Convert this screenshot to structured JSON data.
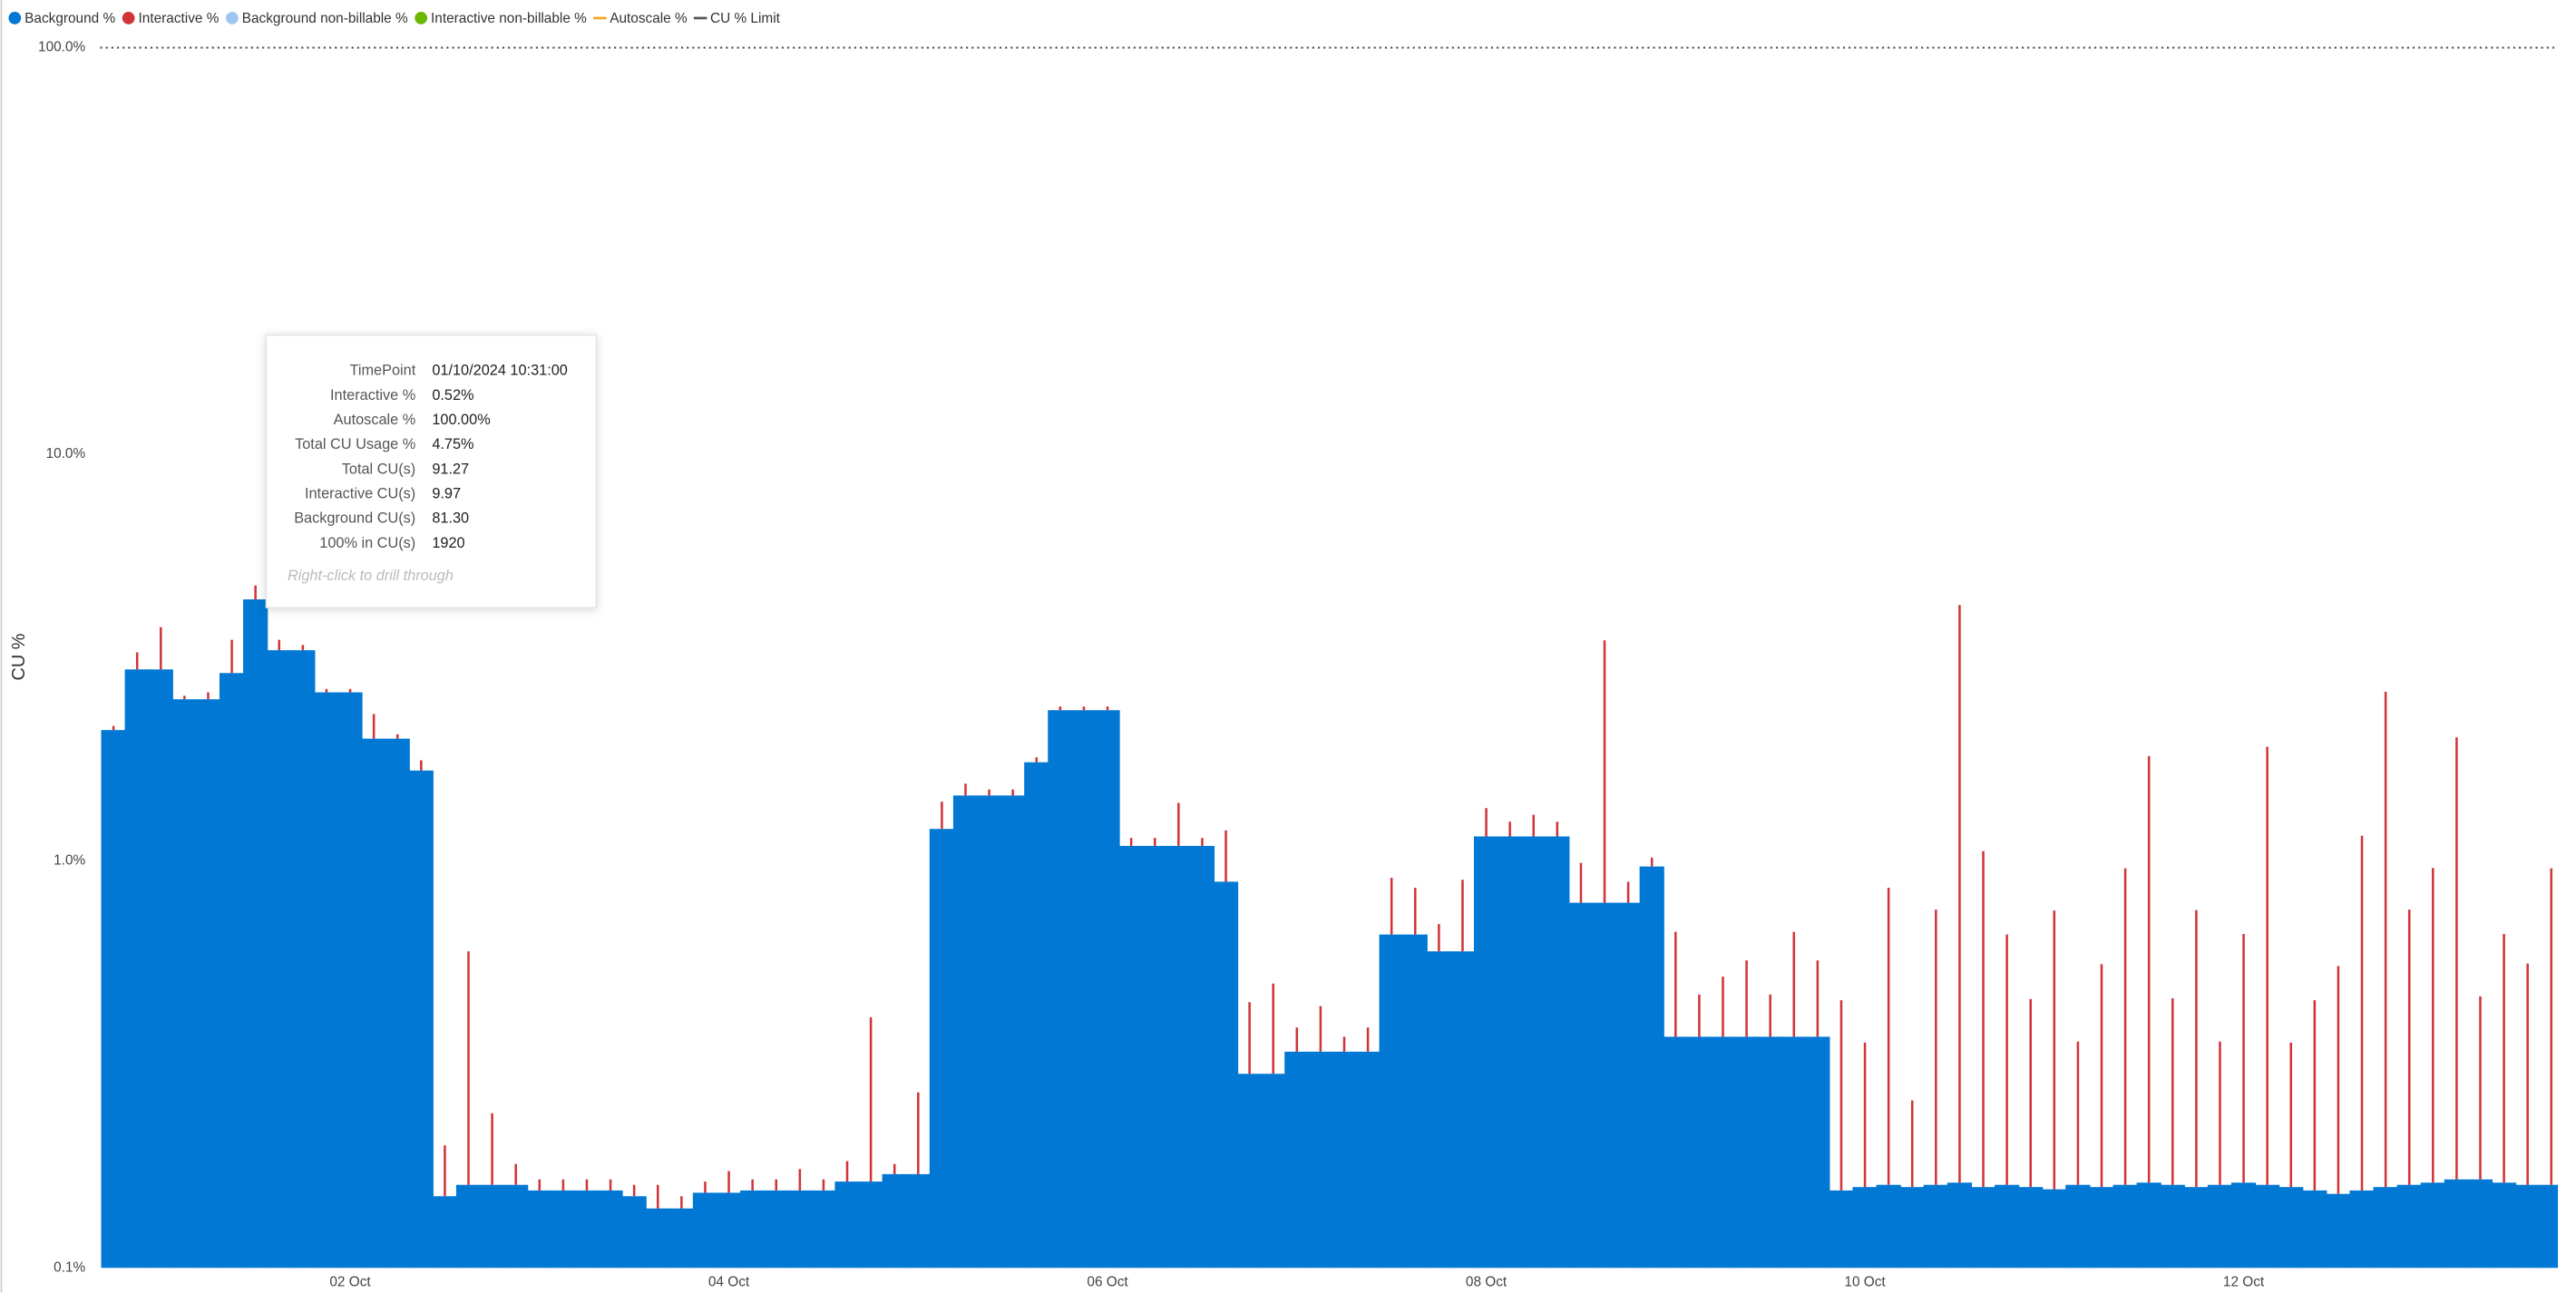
{
  "chart_data": {
    "type": "bar",
    "stacked": true,
    "y_label": "CU %",
    "log_scale": true,
    "xlim": [
      0.68,
      13.66
    ],
    "xticks": [
      {
        "value": 2,
        "label": "02 Oct"
      },
      {
        "value": 4,
        "label": "04 Oct"
      },
      {
        "value": 6,
        "label": "06 Oct"
      },
      {
        "value": 8,
        "label": "08 Oct"
      },
      {
        "value": 10,
        "label": "10 Oct"
      },
      {
        "value": 12,
        "label": "12 Oct"
      }
    ],
    "ylim": [
      0.1,
      100
    ],
    "yticks": [
      {
        "value": 0.1,
        "label": "0.1%"
      },
      {
        "value": 1,
        "label": "1.0%"
      },
      {
        "value": 10,
        "label": "10.0%"
      },
      {
        "value": 100,
        "label": "100.0%"
      }
    ],
    "limit": 100,
    "x": [
      0.75,
      0.875,
      1,
      1.125,
      1.25,
      1.375,
      1.5,
      1.625,
      1.75,
      1.875,
      2,
      2.125,
      2.25,
      2.375,
      2.5,
      2.625,
      2.75,
      2.875,
      3,
      3.125,
      3.25,
      3.375,
      3.5,
      3.625,
      3.75,
      3.875,
      4,
      4.125,
      4.25,
      4.375,
      4.5,
      4.625,
      4.75,
      4.875,
      5,
      5.125,
      5.25,
      5.375,
      5.5,
      5.625,
      5.75,
      5.875,
      6,
      6.125,
      6.25,
      6.375,
      6.5,
      6.625,
      6.75,
      6.875,
      7,
      7.125,
      7.25,
      7.375,
      7.5,
      7.625,
      7.75,
      7.875,
      8,
      8.125,
      8.25,
      8.375,
      8.5,
      8.625,
      8.75,
      8.875,
      9,
      9.125,
      9.25,
      9.375,
      9.5,
      9.625,
      9.75,
      9.875,
      10,
      10.125,
      10.25,
      10.375,
      10.5,
      10.625,
      10.75,
      10.875,
      11,
      11.125,
      11.25,
      11.375,
      11.5,
      11.625,
      11.75,
      11.875,
      12,
      12.125,
      12.25,
      12.375,
      12.5,
      12.625,
      12.75,
      12.875,
      13,
      13.125,
      13.25,
      13.375,
      13.5,
      13.625
    ],
    "series": [
      {
        "name": "Background %",
        "color": "#0078d4",
        "marker": "dot",
        "values": [
          2.1,
          2.96,
          2.96,
          2.5,
          2.5,
          2.9,
          4.4,
          3.3,
          3.3,
          2.6,
          2.6,
          2.0,
          2.0,
          1.67,
          0.15,
          0.16,
          0.16,
          0.16,
          0.155,
          0.155,
          0.155,
          0.155,
          0.15,
          0.14,
          0.14,
          0.153,
          0.153,
          0.155,
          0.155,
          0.155,
          0.155,
          0.163,
          0.163,
          0.17,
          0.17,
          1.2,
          1.45,
          1.45,
          1.45,
          1.75,
          2.35,
          2.35,
          2.35,
          1.09,
          1.09,
          1.09,
          1.09,
          0.89,
          0.3,
          0.3,
          0.34,
          0.34,
          0.34,
          0.34,
          0.66,
          0.66,
          0.6,
          0.6,
          1.15,
          1.15,
          1.15,
          1.15,
          0.79,
          0.79,
          0.79,
          0.97,
          0.37,
          0.37,
          0.37,
          0.37,
          0.37,
          0.37,
          0.37,
          0.155,
          0.158,
          0.16,
          0.158,
          0.16,
          0.162,
          0.158,
          0.16,
          0.158,
          0.156,
          0.16,
          0.158,
          0.16,
          0.162,
          0.16,
          0.158,
          0.16,
          0.162,
          0.16,
          0.158,
          0.155,
          0.152,
          0.155,
          0.158,
          0.16,
          0.162,
          0.165,
          0.165,
          0.162,
          0.16,
          0.16
        ]
      },
      {
        "name": "Interactive %",
        "color": "#d13438",
        "marker": "dot",
        "values": [
          0.05,
          0.3,
          0.8,
          0.05,
          0.1,
          0.6,
          0.36,
          0.2,
          0.1,
          0.05,
          0.05,
          0.3,
          0.05,
          0.1,
          0.05,
          0.44,
          0.08,
          0.02,
          0.01,
          0.01,
          0.01,
          0.01,
          0.01,
          0.02,
          0.01,
          0.01,
          0.02,
          0.01,
          0.01,
          0.02,
          0.01,
          0.02,
          0.25,
          0.01,
          0.1,
          0.2,
          0.1,
          0.05,
          0.05,
          0.05,
          0.05,
          0.05,
          0.05,
          0.05,
          0.05,
          0.3,
          0.05,
          0.3,
          0.15,
          0.2,
          0.05,
          0.1,
          0.03,
          0.05,
          0.25,
          0.2,
          0.1,
          0.3,
          0.2,
          0.1,
          0.15,
          0.1,
          0.2,
          2.7,
          0.1,
          0.05,
          0.3,
          0.1,
          0.15,
          0.2,
          0.1,
          0.3,
          0.2,
          0.3,
          0.2,
          0.7,
          0.1,
          0.6,
          4.1,
          0.9,
          0.5,
          0.3,
          0.6,
          0.2,
          0.4,
          0.8,
          1.65,
          0.3,
          0.6,
          0.2,
          0.5,
          1.75,
          0.2,
          0.3,
          0.4,
          1.0,
          2.45,
          0.6,
          0.8,
          1.85,
          0.3,
          0.5,
          0.4,
          0.8
        ]
      },
      {
        "name": "Background non-billable %",
        "color": "#9dc6ef",
        "marker": "dot"
      },
      {
        "name": "Interactive non-billable %",
        "color": "#6bb700",
        "marker": "dot"
      },
      {
        "name": "Autoscale %",
        "color": "#f2a521",
        "marker": "line"
      },
      {
        "name": "CU % Limit",
        "color": "#555555",
        "marker": "line"
      }
    ],
    "tooltip": {
      "rows": [
        [
          "TimePoint",
          "01/10/2024 10:31:00"
        ],
        [
          "Interactive %",
          "0.52%"
        ],
        [
          "Autoscale %",
          "100.00%"
        ],
        [
          "Total CU Usage %",
          "4.75%"
        ],
        [
          "Total CU(s)",
          "91.27"
        ],
        [
          "Interactive CU(s)",
          "9.97"
        ],
        [
          "Background CU(s)",
          "81.30"
        ],
        [
          "100% in CU(s)",
          "1920"
        ]
      ],
      "hint": "Right-click to drill through"
    }
  }
}
